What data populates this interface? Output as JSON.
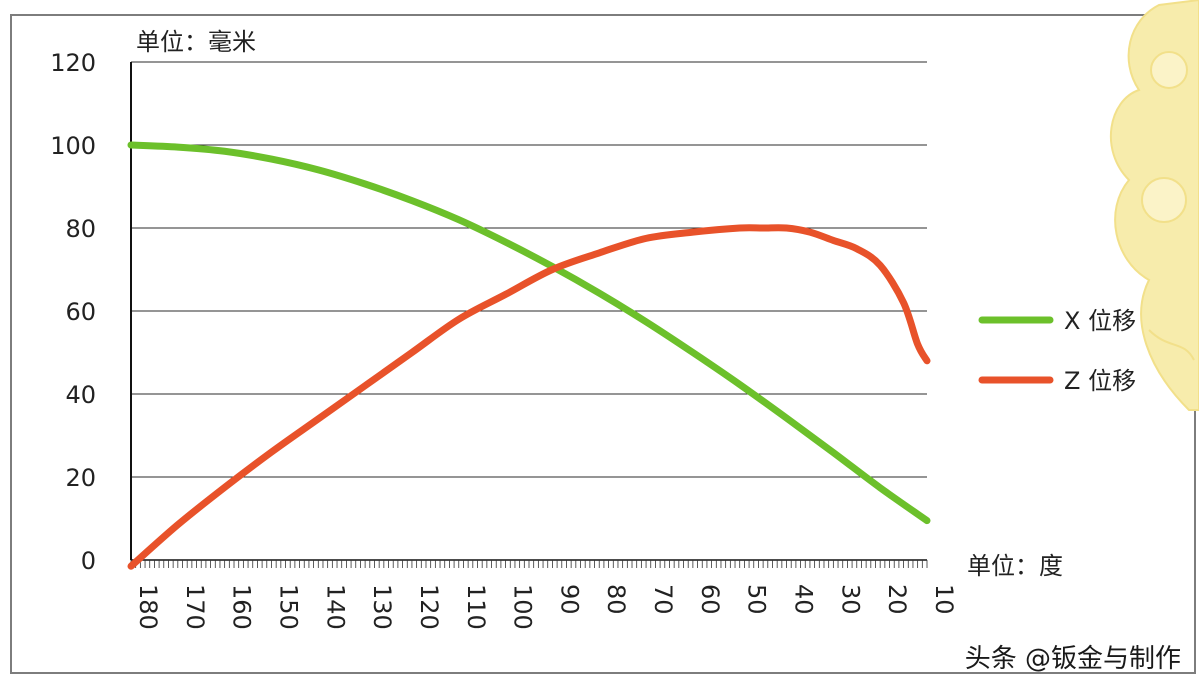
{
  "chart_data": {
    "type": "line",
    "ylabel": "单位：毫米",
    "xlabel": "单位：度",
    "ylim": [
      0,
      120
    ],
    "xlim": [
      180,
      10
    ],
    "x_reversed": true,
    "yticks": [
      0,
      20,
      40,
      60,
      80,
      100,
      120
    ],
    "xticks": [
      180,
      170,
      160,
      150,
      140,
      130,
      120,
      110,
      100,
      90,
      80,
      70,
      60,
      50,
      40,
      30,
      20,
      10
    ],
    "grid": "horizontal",
    "legend_position": "right",
    "series": [
      {
        "name": "X 位移",
        "color": "#6cc02b",
        "x": [
          180,
          170,
          160,
          150,
          140,
          130,
          120,
          110,
          100,
          90,
          80,
          70,
          60,
          50,
          40,
          30,
          20,
          10
        ],
        "y": [
          100,
          99.5,
          98.5,
          96.6,
          94,
          90.6,
          86.6,
          82,
          76.6,
          70.7,
          64.3,
          57.4,
          50,
          42.3,
          34.2,
          25.9,
          17.4,
          9.5
        ]
      },
      {
        "name": "Z 位移",
        "color": "#e8522a",
        "x": [
          180,
          170,
          160,
          150,
          140,
          130,
          120,
          110,
          100,
          90,
          80,
          70,
          60,
          50,
          45,
          40,
          35,
          30,
          25,
          20,
          15,
          12,
          10
        ],
        "y": [
          -1.5,
          8.5,
          17.5,
          26,
          34,
          42,
          50,
          58,
          64,
          70,
          74,
          77.5,
          79,
          80,
          80,
          80,
          79,
          77,
          75,
          71,
          62,
          52,
          48
        ]
      }
    ]
  },
  "watermark": "头条 @钣金与制作"
}
